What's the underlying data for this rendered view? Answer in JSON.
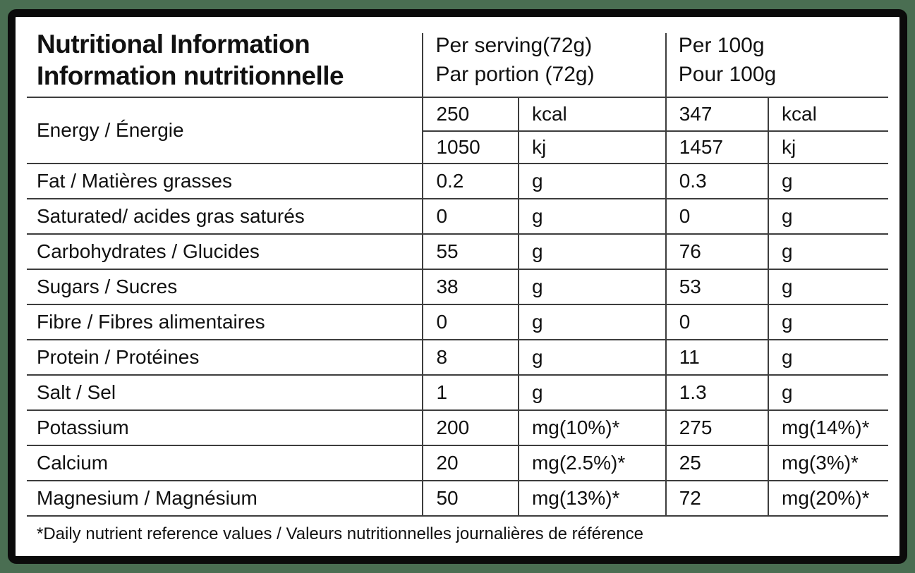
{
  "colors": {
    "background_green": "#4a6e52",
    "panel_border": "#0b0b0b",
    "grid_line": "#3d3d3d",
    "text": "#111111"
  },
  "table": {
    "title_en": "Nutritional Information",
    "title_fr": "Information nutritionnelle",
    "columns": {
      "serving_line1": "Per serving(72g)",
      "serving_line2": "Par portion (72g)",
      "per100_line1": "Per 100g",
      "per100_line2": "Pour 100g"
    },
    "energy": {
      "label": "Energy / Énergie",
      "sub_rows": [
        {
          "serving_value": "250",
          "serving_unit": "kcal",
          "per100_value": "347",
          "per100_unit": "kcal"
        },
        {
          "serving_value": "1050",
          "serving_unit": "kj",
          "per100_value": "1457",
          "per100_unit": "kj"
        }
      ]
    },
    "rows": [
      {
        "label": "Fat / Matières grasses",
        "serving_value": "0.2",
        "serving_unit": "g",
        "per100_value": "0.3",
        "per100_unit": "g"
      },
      {
        "label": "Saturated/ acides gras saturés",
        "serving_value": "0",
        "serving_unit": "g",
        "per100_value": "0",
        "per100_unit": "g"
      },
      {
        "label": "Carbohydrates / Glucides",
        "serving_value": "55",
        "serving_unit": "g",
        "per100_value": "76",
        "per100_unit": "g"
      },
      {
        "label": "Sugars / Sucres",
        "serving_value": "38",
        "serving_unit": "g",
        "per100_value": "53",
        "per100_unit": "g"
      },
      {
        "label": "Fibre / Fibres alimentaires",
        "serving_value": "0",
        "serving_unit": "g",
        "per100_value": "0",
        "per100_unit": "g"
      },
      {
        "label": "Protein / Protéines",
        "serving_value": "8",
        "serving_unit": "g",
        "per100_value": "11",
        "per100_unit": "g"
      },
      {
        "label": "Salt / Sel",
        "serving_value": "1",
        "serving_unit": "g",
        "per100_value": "1.3",
        "per100_unit": "g"
      },
      {
        "label": "Potassium",
        "serving_value": "200",
        "serving_unit": "mg(10%)*",
        "per100_value": "275",
        "per100_unit": "mg(14%)*"
      },
      {
        "label": "Calcium",
        "serving_value": "20",
        "serving_unit": "mg(2.5%)*",
        "per100_value": "25",
        "per100_unit": "mg(3%)*"
      },
      {
        "label": "Magnesium / Magnésium",
        "serving_value": "50",
        "serving_unit": "mg(13%)*",
        "per100_value": "72",
        "per100_unit": "mg(20%)*"
      }
    ],
    "footnote": "*Daily nutrient reference values / Valeurs nutritionnelles journalières de référence"
  }
}
